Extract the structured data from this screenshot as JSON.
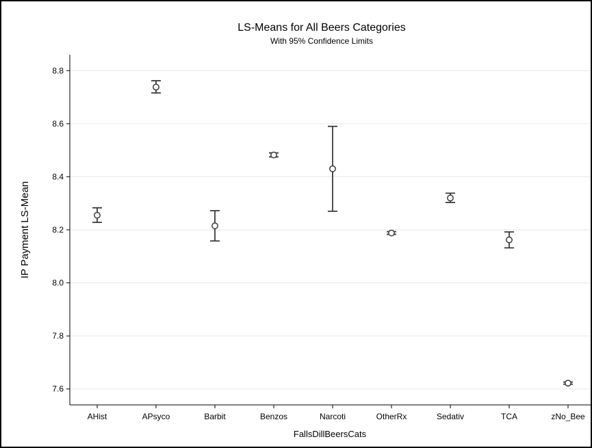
{
  "chart_data": {
    "type": "scatter",
    "title": "LS-Means for All Beers Categories",
    "subtitle": "With 95% Confidence Limits",
    "xlabel": "FallsDillBeersCats",
    "ylabel": "IP Payment LS-Mean",
    "ylim": [
      7.54,
      8.86
    ],
    "yticks": [
      "7.6",
      "7.8",
      "8.0",
      "8.2",
      "8.4",
      "8.6",
      "8.8"
    ],
    "grid": true,
    "categories": [
      "AHist",
      "APsyco",
      "Barbit",
      "Benzos",
      "Narcoti",
      "OtherRx",
      "Sedativ",
      "TCA",
      "zNo_Bee"
    ],
    "series": [
      {
        "means": [
          8.255,
          8.738,
          8.215,
          8.482,
          8.43,
          8.188,
          8.32,
          8.162,
          7.622
        ],
        "lower": [
          8.228,
          8.716,
          8.158,
          8.475,
          8.27,
          8.183,
          8.303,
          8.132,
          7.618
        ],
        "upper": [
          8.283,
          8.762,
          8.272,
          8.49,
          8.59,
          8.193,
          8.338,
          8.192,
          7.626
        ]
      }
    ],
    "colors": {
      "marker": "#3a3a3a",
      "grid": "#e6e6e6",
      "axis": "#000000",
      "ylabel": "#5a1f46"
    }
  }
}
